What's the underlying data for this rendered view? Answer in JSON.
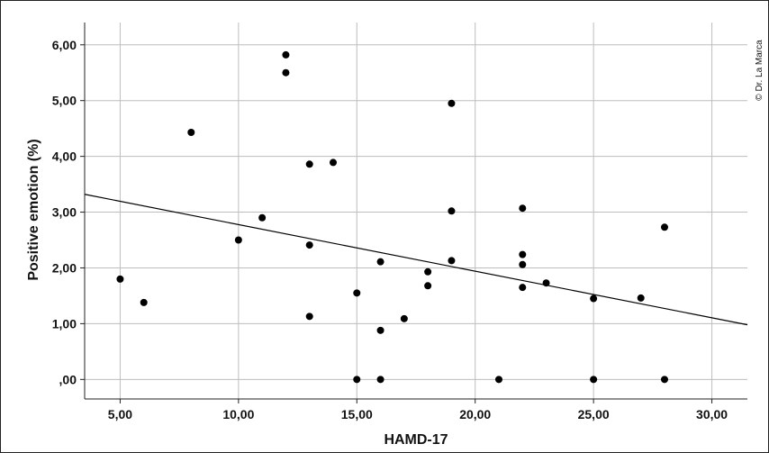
{
  "chart_data": {
    "type": "scatter",
    "xlabel": "HAMD-17",
    "ylabel": "Positive emotion (%)",
    "xlim": [
      3.5,
      31.5
    ],
    "ylim": [
      -0.35,
      6.4
    ],
    "x_ticks": [
      5,
      10,
      15,
      20,
      25,
      30
    ],
    "x_tick_labels": [
      "5,00",
      "10,00",
      "15,00",
      "20,00",
      "25,00",
      "30,00"
    ],
    "y_ticks": [
      0,
      1,
      2,
      3,
      4,
      5,
      6
    ],
    "y_tick_labels": [
      ",00",
      "1,00",
      "2,00",
      "3,00",
      "4,00",
      "5,00",
      "6,00"
    ],
    "grid": true,
    "points": [
      {
        "x": 5,
        "y": 1.8
      },
      {
        "x": 6,
        "y": 1.38
      },
      {
        "x": 8,
        "y": 4.43
      },
      {
        "x": 10,
        "y": 2.5
      },
      {
        "x": 11,
        "y": 2.9
      },
      {
        "x": 12,
        "y": 5.82
      },
      {
        "x": 12,
        "y": 5.5
      },
      {
        "x": 13,
        "y": 3.86
      },
      {
        "x": 13,
        "y": 2.41
      },
      {
        "x": 13,
        "y": 1.13
      },
      {
        "x": 14,
        "y": 3.89
      },
      {
        "x": 15,
        "y": 1.55
      },
      {
        "x": 15,
        "y": 0
      },
      {
        "x": 16,
        "y": 2.11
      },
      {
        "x": 16,
        "y": 0.88
      },
      {
        "x": 16,
        "y": 0
      },
      {
        "x": 17,
        "y": 1.09
      },
      {
        "x": 18,
        "y": 1.93
      },
      {
        "x": 18,
        "y": 1.68
      },
      {
        "x": 19,
        "y": 4.95
      },
      {
        "x": 19,
        "y": 3.02
      },
      {
        "x": 19,
        "y": 2.13
      },
      {
        "x": 21,
        "y": 0
      },
      {
        "x": 22,
        "y": 3.07
      },
      {
        "x": 22,
        "y": 2.24
      },
      {
        "x": 22,
        "y": 2.06
      },
      {
        "x": 22,
        "y": 1.65
      },
      {
        "x": 23,
        "y": 1.73
      },
      {
        "x": 25,
        "y": 1.45
      },
      {
        "x": 25,
        "y": 0
      },
      {
        "x": 27,
        "y": 1.46
      },
      {
        "x": 28,
        "y": 2.73
      },
      {
        "x": 28,
        "y": 0
      }
    ],
    "fit_line": {
      "x": [
        3.5,
        31.5
      ],
      "y": [
        3.32,
        0.98
      ]
    },
    "marker_color": "#000000",
    "line_color": "#000000",
    "grid_color": "#bdbdbd"
  },
  "credit": "© Dr. La Marca"
}
